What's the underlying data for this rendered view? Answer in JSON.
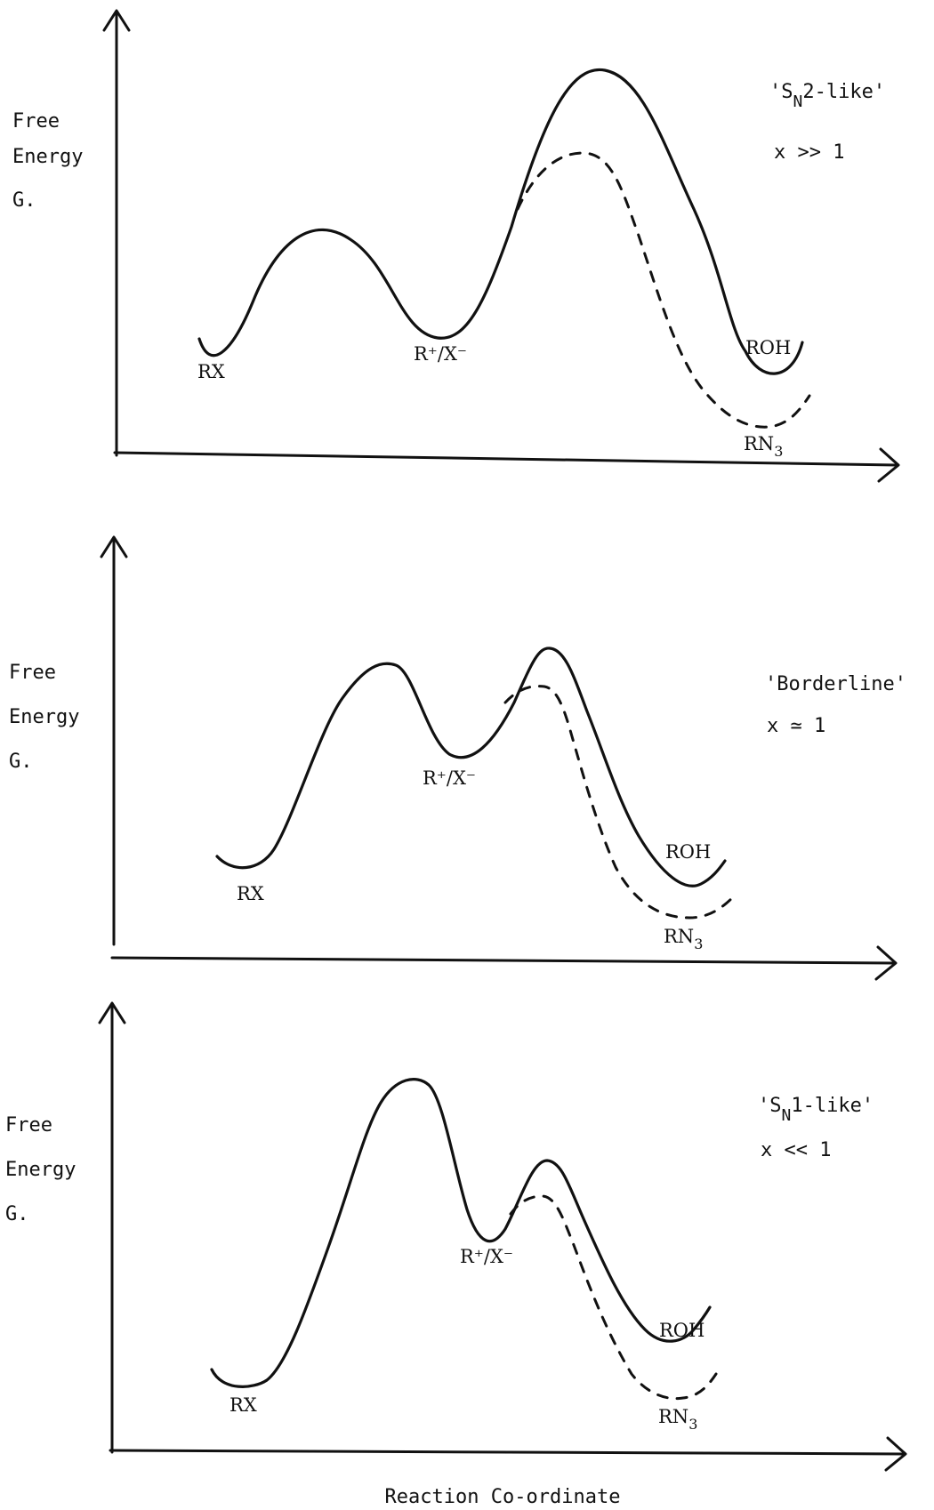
{
  "y_axis_label": {
    "line1": "Free",
    "line2": "Energy",
    "line3": "G."
  },
  "x_axis_label": "Reaction Co-ordinate",
  "panels": [
    {
      "regime": {
        "prefix": "'S",
        "sub": "N",
        "suffix": "2-like'"
      },
      "condition": "x >> 1",
      "labels": {
        "rx": "RX",
        "intermediate": "R⁺/X⁻",
        "roh": "ROH",
        "rn3": "RN",
        "rn3_sub": "3"
      }
    },
    {
      "regime": {
        "prefix": "'Borderline'",
        "sub": "",
        "suffix": ""
      },
      "condition": "x ≃ 1",
      "labels": {
        "rx": "RX",
        "intermediate": "R⁺/X⁻",
        "roh": "ROH",
        "rn3": "RN",
        "rn3_sub": "3"
      }
    },
    {
      "regime": {
        "prefix": "'S",
        "sub": "N",
        "suffix": "1-like'"
      },
      "condition": "x << 1",
      "labels": {
        "rx": "RX",
        "intermediate": "R⁺/X⁻",
        "roh": "ROH",
        "rn3": "RN",
        "rn3_sub": "3"
      }
    }
  ]
}
